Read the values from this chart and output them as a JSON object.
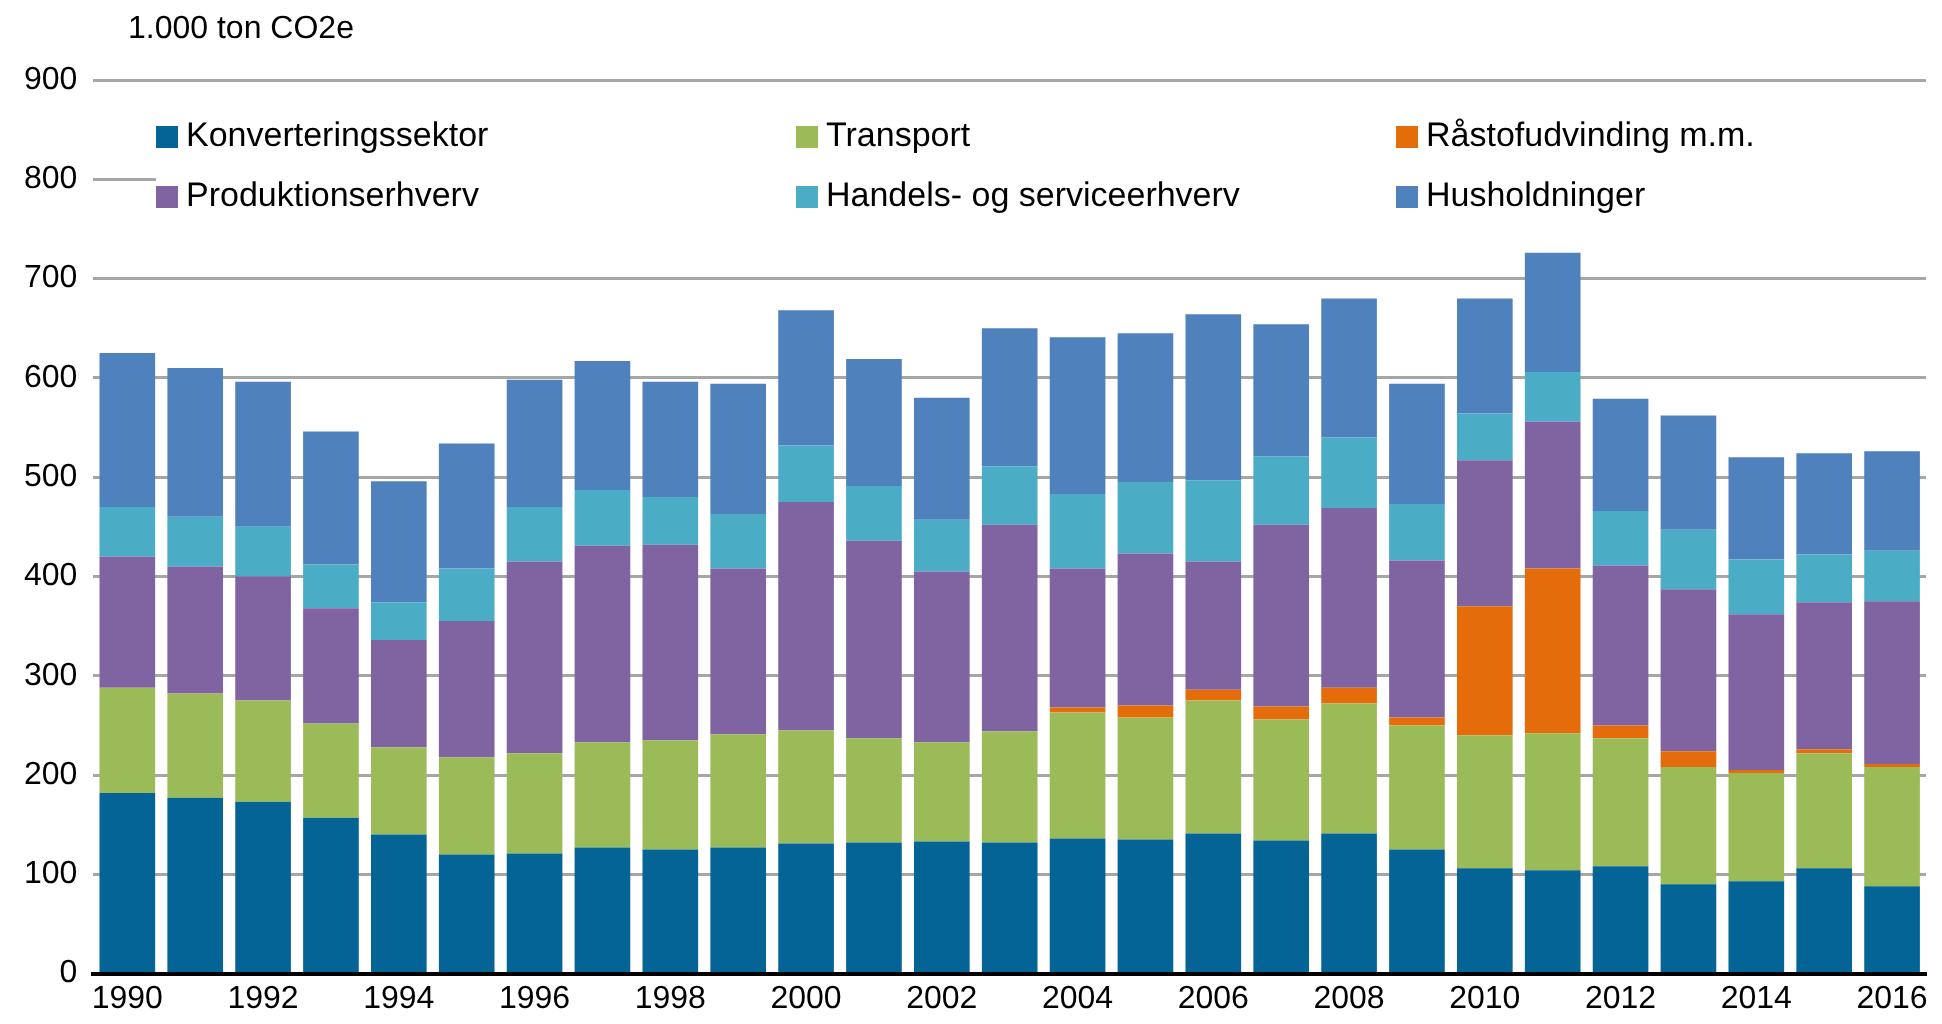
{
  "chart_data": {
    "type": "bar",
    "stacked": true,
    "ylabel": "1.000 ton CO2e",
    "categories": [
      "1990",
      null,
      "1992",
      null,
      "1994",
      null,
      "1996",
      null,
      "1998",
      null,
      "2000",
      null,
      "2002",
      null,
      "2004",
      null,
      "2006",
      null,
      "2008",
      null,
      "2010",
      null,
      "2012",
      null,
      "2014",
      null,
      "2016"
    ],
    "series": [
      {
        "name": "Konverteringssektor",
        "color": "#046496",
        "values": [
          182,
          177,
          173,
          157,
          140,
          120,
          121,
          127,
          125,
          127,
          131,
          132,
          133,
          132,
          136,
          135,
          141,
          134,
          141,
          125,
          106,
          104,
          108,
          90,
          93,
          106,
          88
        ]
      },
      {
        "name": "Transport",
        "color": "#9bbb59",
        "values": [
          106,
          105,
          102,
          95,
          88,
          98,
          101,
          106,
          110,
          114,
          114,
          105,
          100,
          112,
          127,
          123,
          134,
          122,
          131,
          125,
          134,
          138,
          129,
          118,
          109,
          116,
          120
        ]
      },
      {
        "name": "Råstofudvinding m.m.",
        "color": "#e46c0a",
        "values": [
          0,
          0,
          0,
          0,
          0,
          0,
          0,
          0,
          0,
          0,
          0,
          0,
          0,
          0,
          5,
          12,
          11,
          13,
          16,
          8,
          130,
          166,
          13,
          16,
          3,
          4,
          3
        ]
      },
      {
        "name": "Produktionserhverv",
        "color": "#8064a2",
        "values": [
          132,
          128,
          125,
          116,
          108,
          137,
          193,
          198,
          197,
          167,
          230,
          199,
          172,
          208,
          140,
          153,
          129,
          183,
          181,
          158,
          147,
          148,
          161,
          163,
          157,
          148,
          164
        ]
      },
      {
        "name": "Handels- og serviceerhverv",
        "color": "#4bacc6",
        "values": [
          50,
          50,
          50,
          44,
          38,
          53,
          55,
          56,
          48,
          55,
          57,
          55,
          52,
          59,
          75,
          72,
          82,
          69,
          71,
          57,
          47,
          50,
          55,
          60,
          55,
          48,
          51
        ]
      },
      {
        "name": "Husholdninger",
        "color": "#4f81bd",
        "values": [
          155,
          150,
          146,
          134,
          122,
          126,
          128,
          130,
          116,
          131,
          136,
          128,
          123,
          139,
          158,
          150,
          167,
          133,
          140,
          121,
          116,
          120,
          113,
          115,
          103,
          102,
          100
        ]
      }
    ],
    "ylim": [
      0,
      900
    ],
    "yticks": [
      0,
      100,
      200,
      300,
      400,
      500,
      600,
      700,
      800,
      900
    ],
    "grid": "y",
    "legend": "top"
  }
}
